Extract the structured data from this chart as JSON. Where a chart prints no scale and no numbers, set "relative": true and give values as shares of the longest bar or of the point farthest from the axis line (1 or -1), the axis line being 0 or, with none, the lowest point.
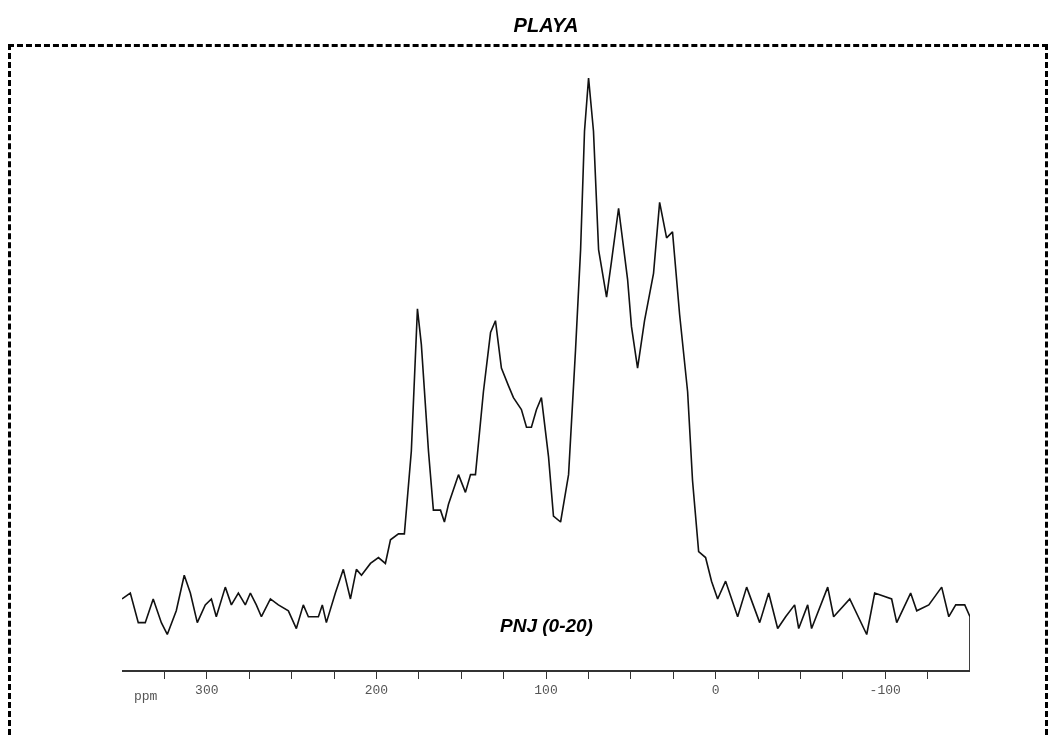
{
  "chart_data": {
    "type": "line",
    "title": "PLAYA",
    "xlabel": "ppm",
    "annotations": [
      "PNJ (0-20)"
    ],
    "relative": true,
    "line_style": "solid",
    "xlim": [
      350,
      -150
    ],
    "xticks": [
      {
        "value": 325,
        "label": null
      },
      300,
      {
        "value": 275,
        "label": null
      },
      {
        "value": 250,
        "label": null
      },
      {
        "value": 225,
        "label": null
      },
      200,
      {
        "value": 175,
        "label": null
      },
      {
        "value": 150,
        "label": null
      },
      {
        "value": 125,
        "label": null
      },
      100,
      {
        "value": 75,
        "label": null
      },
      {
        "value": 50,
        "label": null
      },
      {
        "value": 25,
        "label": null
      },
      0,
      {
        "value": -25,
        "label": null
      },
      {
        "value": -50,
        "label": null
      },
      {
        "value": -75,
        "label": null
      },
      -100,
      {
        "value": -125,
        "label": null
      }
    ],
    "series": [
      {
        "color": "#111111",
        "x": [
          350,
          345.1,
          340.4,
          336.3,
          331.6,
          326.8,
          323.3,
          318.0,
          313.3,
          309.7,
          305.6,
          300.9,
          297.3,
          294.4,
          289.1,
          285.5,
          281.4,
          277.3,
          274.3,
          270.8,
          267.8,
          262.5,
          257.8,
          251.9,
          247.2,
          243.1,
          240.1,
          234.2,
          231.9,
          229.5,
          224.2,
          219.5,
          215.3,
          211.8,
          208.8,
          203.5,
          198.8,
          194.7,
          191.7,
          187.0,
          183.5,
          179.4,
          175.8,
          173.5,
          169.3,
          166.4,
          162.2,
          159.9,
          157.5,
          151.6,
          147.5,
          144.5,
          141.6,
          136.9,
          132.7,
          129.8,
          126.3,
          122.1,
          119.2,
          114.5,
          111.5,
          108.6,
          105.6,
          102.7,
          98.5,
          95.6,
          91.4,
          86.7,
          82.6,
          79.6,
          77.3,
          74.9,
          72.0,
          69.0,
          64.3,
          61.4,
          57.2,
          51.9,
          49.6,
          46.0,
          41.9,
          36.6,
          33.0,
          28.9,
          25.4,
          21.2,
          16.5,
          13.6,
          10.0,
          5.9,
          2.4,
          -1.2,
          -5.9,
          -13.0,
          -18.3,
          -26.0,
          -31.3,
          -36.6,
          -41.3,
          -46.6,
          -49.0,
          -54.3,
          -56.6,
          -66.1,
          -69.6,
          -79.1,
          -89.1,
          -93.8,
          -103.8,
          -106.8,
          -115.0,
          -118.6,
          -125.7,
          -133.3,
          -137.5,
          -141.6,
          -146.9,
          -150,
          -150
        ],
        "values": [
          0.12,
          0.13,
          0.08,
          0.08,
          0.12,
          0.08,
          0.06,
          0.1,
          0.16,
          0.13,
          0.08,
          0.11,
          0.12,
          0.09,
          0.14,
          0.11,
          0.13,
          0.11,
          0.13,
          0.11,
          0.09,
          0.12,
          0.11,
          0.1,
          0.07,
          0.11,
          0.09,
          0.09,
          0.11,
          0.08,
          0.13,
          0.17,
          0.12,
          0.17,
          0.16,
          0.18,
          0.19,
          0.18,
          0.22,
          0.23,
          0.23,
          0.37,
          0.61,
          0.55,
          0.37,
          0.27,
          0.27,
          0.25,
          0.28,
          0.33,
          0.3,
          0.33,
          0.33,
          0.47,
          0.57,
          0.59,
          0.51,
          0.48,
          0.46,
          0.44,
          0.41,
          0.41,
          0.44,
          0.46,
          0.36,
          0.26,
          0.25,
          0.33,
          0.54,
          0.71,
          0.91,
          1.0,
          0.91,
          0.71,
          0.63,
          0.69,
          0.78,
          0.66,
          0.58,
          0.51,
          0.59,
          0.67,
          0.79,
          0.73,
          0.74,
          0.6,
          0.47,
          0.32,
          0.2,
          0.19,
          0.15,
          0.12,
          0.15,
          0.09,
          0.14,
          0.08,
          0.13,
          0.07,
          0.09,
          0.11,
          0.07,
          0.11,
          0.07,
          0.14,
          0.09,
          0.12,
          0.06,
          0.13,
          0.12,
          0.08,
          0.13,
          0.1,
          0.11,
          0.14,
          0.09,
          0.11,
          0.11,
          0.09,
          0
        ]
      }
    ]
  }
}
